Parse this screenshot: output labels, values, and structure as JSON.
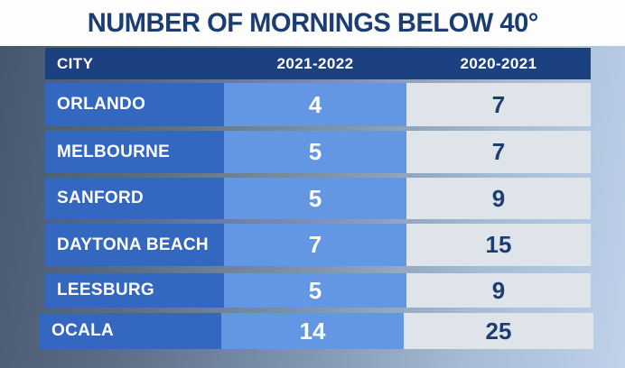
{
  "title": "NUMBER OF MORNINGS BELOW 40°",
  "chart_data": {
    "type": "table",
    "title": "NUMBER OF MORNINGS BELOW 40°",
    "columns": [
      "CITY",
      "2021-2022",
      "2020-2021"
    ],
    "rows": [
      {
        "city": "ORLANDO",
        "v1": "4",
        "v2": "7"
      },
      {
        "city": "MELBOURNE",
        "v1": "5",
        "v2": "7"
      },
      {
        "city": "SANFORD",
        "v1": "5",
        "v2": "9"
      },
      {
        "city": "DAYTONA BEACH",
        "v1": "7",
        "v2": "15"
      },
      {
        "city": "LEESBURG",
        "v1": "5",
        "v2": "9"
      },
      {
        "city": "OCALA",
        "v1": "14",
        "v2": "25"
      }
    ],
    "series": [
      {
        "name": "2021-2022",
        "values": [
          4,
          5,
          5,
          7,
          5,
          14
        ]
      },
      {
        "name": "2020-2021",
        "values": [
          7,
          7,
          9,
          15,
          9,
          25
        ]
      }
    ],
    "categories": [
      "ORLANDO",
      "MELBOURNE",
      "SANFORD",
      "DAYTONA BEACH",
      "LEESBURG",
      "OCALA"
    ]
  },
  "colors": {
    "title_navy": "#1b3d71",
    "header_navy": "#1c4180",
    "city_cell_blue": "#3467c0",
    "season1_cell_blue": "#6396e3",
    "season2_cell_gray": "#dfe4ea",
    "banner_white": "#fdfdfd",
    "background_dark": "#45566c",
    "background_light": "#bfd2ea"
  }
}
